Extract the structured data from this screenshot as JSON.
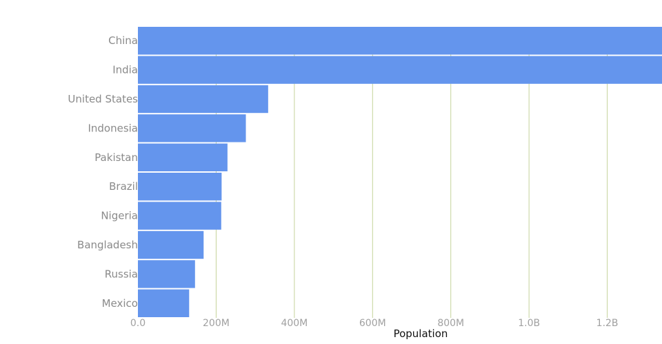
{
  "colors": {
    "bar": "#6495ed",
    "grid": "#c5d39a",
    "tick_text": "#a0a0a0",
    "category_text": "#8a8a8a",
    "axis_title_text": "#111111",
    "background": "#ffffff"
  },
  "chart_data": {
    "type": "bar",
    "orientation": "horizontal",
    "categories": [
      "China",
      "India",
      "United States",
      "Indonesia",
      "Pakistan",
      "Brazil",
      "Nigeria",
      "Bangladesh",
      "Russia",
      "Mexico"
    ],
    "values": [
      1412000000,
      1408000000,
      333000000,
      276000000,
      229000000,
      214000000,
      213000000,
      168000000,
      146000000,
      131000000
    ],
    "xlabel": "Population",
    "ylabel": "",
    "title": "",
    "xlim": [
      0,
      1340000000
    ],
    "x_ticks": [
      0,
      200000000,
      400000000,
      600000000,
      800000000,
      1000000000,
      1200000000
    ],
    "x_tick_labels": [
      "0.0",
      "200M",
      "400M",
      "600M",
      "800M",
      "1.0B",
      "1.2B"
    ],
    "grid": "vertical",
    "legend": "none"
  }
}
